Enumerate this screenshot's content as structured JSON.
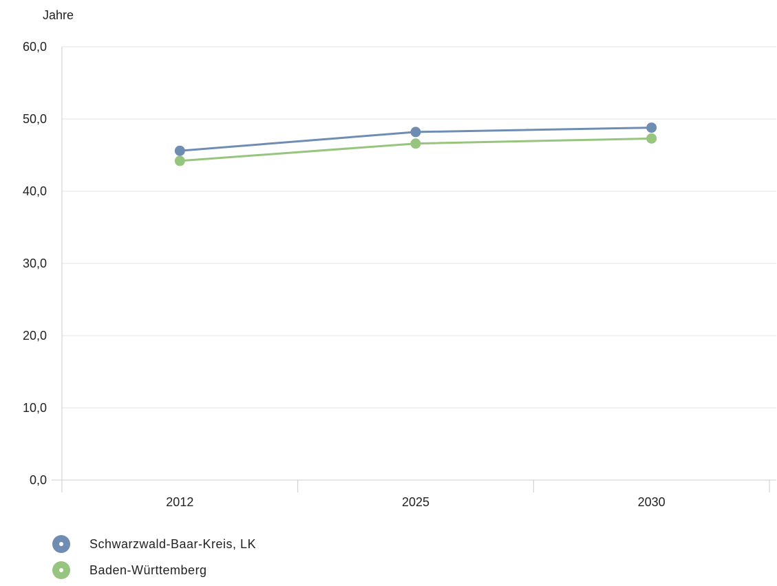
{
  "chart_data": {
    "type": "line",
    "title": "",
    "xlabel": "",
    "ylabel": "Jahre",
    "categories": [
      "2012",
      "2025",
      "2030"
    ],
    "ylim": [
      0,
      60
    ],
    "yticks": [
      "0,0",
      "10,0",
      "20,0",
      "30,0",
      "40,0",
      "50,0",
      "60,0"
    ],
    "grid": true,
    "legend_position": "bottom-left",
    "series": [
      {
        "name": "Schwarzwald-Baar-Kreis, LK",
        "values": [
          45.6,
          48.2,
          48.8
        ],
        "color": "#6f8cb3"
      },
      {
        "name": "Baden-Württemberg",
        "values": [
          44.2,
          46.6,
          47.3
        ],
        "color": "#97c47e"
      }
    ]
  }
}
